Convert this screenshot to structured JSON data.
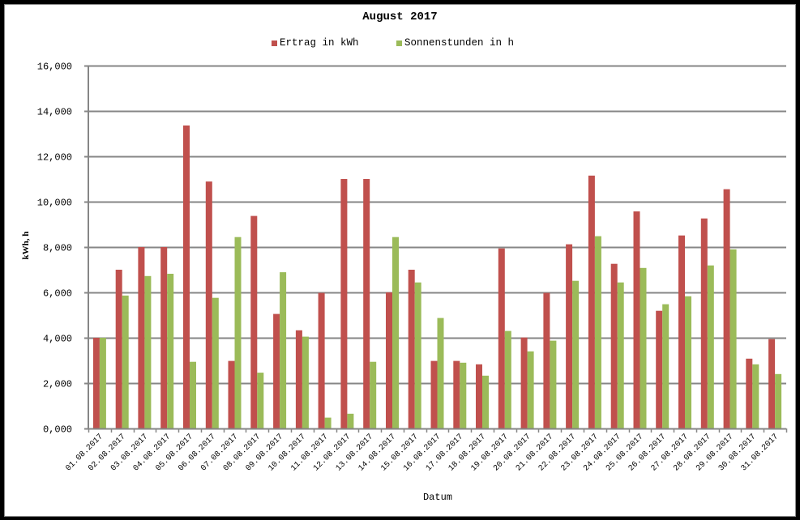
{
  "chart_data": {
    "type": "bar",
    "title": "August 2017",
    "xlabel": "Datum",
    "ylabel": "kWh, h",
    "ylim": [
      0,
      16
    ],
    "yticks": [
      "0,000",
      "2,000",
      "4,000",
      "6,000",
      "8,000",
      "10,000",
      "12,000",
      "14,000",
      "16,000"
    ],
    "grid": true,
    "legend_position": "top",
    "categories": [
      "01.08.2017",
      "02.08.2017",
      "03.08.2017",
      "04.08.2017",
      "05.08.2017",
      "06.08.2017",
      "07.08.2017",
      "08.08.2017",
      "09.08.2017",
      "10.08.2017",
      "11.08.2017",
      "12.08.2017",
      "13.08.2017",
      "14.08.2017",
      "15.08.2017",
      "16.08.2017",
      "17.08.2017",
      "18.08.2017",
      "19.08.2017",
      "20.08.2017",
      "21.08.2017",
      "22.08.2017",
      "23.08.2017",
      "24.08.2017",
      "25.08.2017",
      "26.08.2017",
      "27.08.2017",
      "28.08.2017",
      "29.08.2017",
      "30.08.2017",
      "31.08.2017"
    ],
    "series": [
      {
        "name": "Ertrag in kWh",
        "color": "#c0504d",
        "values": [
          4.0,
          7.0,
          8.0,
          8.0,
          13.36,
          10.89,
          2.98,
          9.37,
          5.05,
          4.33,
          5.98,
          11.0,
          11.0,
          6.0,
          7.0,
          2.98,
          2.98,
          2.83,
          7.94,
          4.01,
          5.98,
          8.12,
          11.15,
          7.26,
          9.57,
          5.19,
          8.51,
          9.26,
          10.55,
          3.08,
          3.94
        ]
      },
      {
        "name": "Sonnenstunden in h",
        "color": "#9bbb59",
        "values": [
          4.0,
          5.86,
          6.72,
          6.82,
          2.94,
          5.76,
          8.44,
          2.46,
          6.89,
          4.05,
          0.48,
          0.65,
          2.94,
          8.44,
          6.44,
          4.87,
          2.9,
          2.33,
          4.3,
          3.4,
          3.87,
          6.51,
          8.48,
          6.44,
          7.08,
          5.48,
          5.83,
          7.19,
          7.9,
          2.83,
          2.4
        ]
      }
    ]
  },
  "colors": {
    "gridline": "#868686",
    "frame_border": "#000000"
  }
}
